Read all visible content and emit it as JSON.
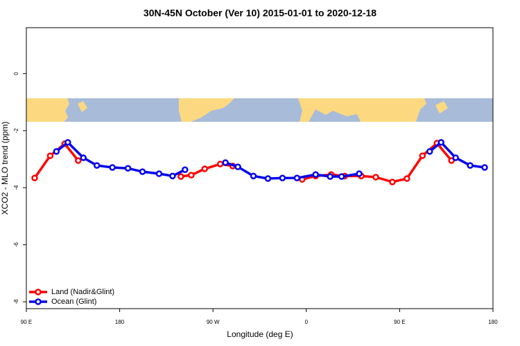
{
  "chart_data": {
    "type": "line",
    "title": "30N-45N October (Ver 10)   2015-01-01 to 2020-12-18",
    "xlabel": "Longitude (deg E)",
    "ylabel": "XCO2 - MLO trend (ppm)",
    "xlim": [
      90,
      540
    ],
    "ylim": [
      -8.24,
      1.61
    ],
    "xticks": [
      {
        "value": 90,
        "label": "90 E"
      },
      {
        "value": 180,
        "label": "180"
      },
      {
        "value": 270,
        "label": "90 W"
      },
      {
        "value": 360,
        "label": "0"
      },
      {
        "value": 450,
        "label": "90 E"
      },
      {
        "value": 540,
        "label": "180"
      }
    ],
    "yticks": [
      -8,
      -6,
      -4,
      -2,
      0
    ],
    "legend": "bottom-left",
    "series": [
      {
        "name": "Land (Nadir&Glint)",
        "color": "#ff0000",
        "x": [
          98,
          113,
          127,
          140,
          null,
          239,
          249,
          262,
          277,
          289,
          null,
          356,
          369,
          384,
          397,
          413,
          427,
          443,
          457,
          472,
          486,
          500
        ],
        "values": [
          -3.66,
          -2.88,
          -2.46,
          -3.05,
          null,
          -3.61,
          -3.56,
          -3.34,
          -3.17,
          -3.24,
          null,
          -3.71,
          -3.59,
          -3.54,
          -3.59,
          -3.59,
          -3.63,
          -3.8,
          -3.68,
          -2.88,
          -2.44,
          -3.05
        ]
      },
      {
        "name": "Ocean (Glint)",
        "color": "#0000ee",
        "x": [
          119,
          130,
          145,
          158,
          173,
          188,
          202,
          218,
          231,
          243,
          null,
          282,
          294,
          309,
          323,
          337,
          351,
          369,
          383,
          394,
          411,
          null,
          479,
          490,
          504,
          518,
          532
        ],
        "values": [
          -2.73,
          -2.41,
          -2.95,
          -3.22,
          -3.29,
          -3.32,
          -3.44,
          -3.51,
          -3.59,
          -3.37,
          null,
          -3.12,
          -3.27,
          -3.59,
          -3.68,
          -3.66,
          -3.66,
          -3.54,
          -3.61,
          -3.61,
          -3.51,
          null,
          -2.73,
          -2.41,
          -2.95,
          -3.22,
          -3.29
        ]
      }
    ]
  }
}
